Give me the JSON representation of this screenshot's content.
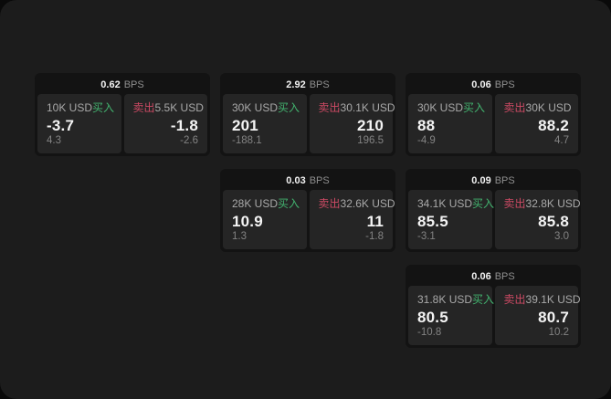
{
  "labels": {
    "bps": "BPS",
    "buy": "买入",
    "sell": "卖出"
  },
  "colors": {
    "page_background": "#1c1c1c",
    "outside_background": "#0a0a0a",
    "card_background": "#131313",
    "panel_background": "#252525",
    "buy_accent": "#42b36f",
    "sell_accent": "#cc4a64"
  },
  "cards": [
    {
      "bps": "0.62",
      "buy": {
        "amount": "10K USD",
        "price": "-3.7",
        "delta": "4.3"
      },
      "sell": {
        "amount": "5.5K USD",
        "price": "-1.8",
        "delta": "-2.6"
      }
    },
    {
      "bps": "2.92",
      "buy": {
        "amount": "30K USD",
        "price": "201",
        "delta": "-188.1"
      },
      "sell": {
        "amount": "30.1K USD",
        "price": "210",
        "delta": "196.5"
      }
    },
    {
      "bps": "0.06",
      "buy": {
        "amount": "30K USD",
        "price": "88",
        "delta": "-4.9"
      },
      "sell": {
        "amount": "30K USD",
        "price": "88.2",
        "delta": "4.7"
      }
    },
    {
      "bps": "0.03",
      "buy": {
        "amount": "28K USD",
        "price": "10.9",
        "delta": "1.3"
      },
      "sell": {
        "amount": "32.6K USD",
        "price": "11",
        "delta": "-1.8"
      }
    },
    {
      "bps": "0.09",
      "buy": {
        "amount": "34.1K USD",
        "price": "85.5",
        "delta": "-3.1"
      },
      "sell": {
        "amount": "32.8K USD",
        "price": "85.8",
        "delta": "3.0"
      }
    },
    {
      "bps": "0.06",
      "buy": {
        "amount": "31.8K USD",
        "price": "80.5",
        "delta": "-10.8"
      },
      "sell": {
        "amount": "39.1K USD",
        "price": "80.7",
        "delta": "10.2"
      }
    }
  ]
}
